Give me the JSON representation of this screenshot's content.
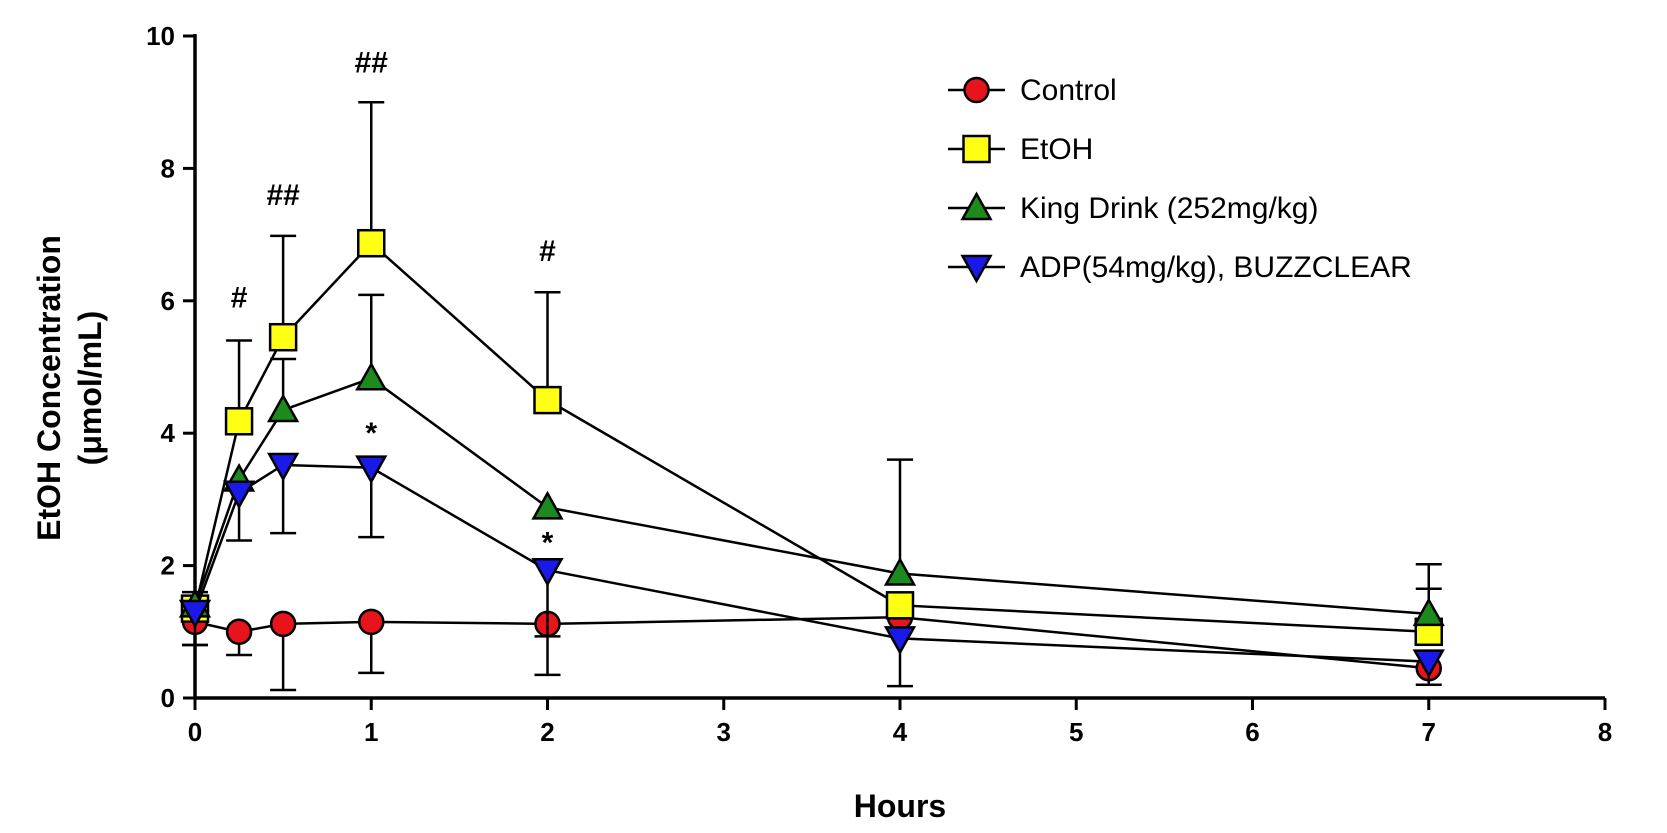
{
  "chart_data": {
    "type": "line",
    "xlabel": "Hours",
    "ylabel_line1": "EtOH Concentration",
    "ylabel_line2": "(μmol/mL)",
    "xlim": [
      0,
      8
    ],
    "ylim": [
      0,
      10
    ],
    "xticks": [
      "0",
      "1",
      "2",
      "3",
      "4",
      "5",
      "6",
      "7",
      "8"
    ],
    "yticks": [
      "0",
      "2",
      "4",
      "6",
      "8",
      "10"
    ],
    "grid": false,
    "legend_position": "top-right",
    "series": [
      {
        "name": "Control",
        "marker": "circle",
        "color": "#e8141b",
        "x": [
          0,
          0.25,
          0.5,
          1,
          2,
          4,
          7
        ],
        "y": [
          1.15,
          1.0,
          1.12,
          1.15,
          1.12,
          1.22,
          0.45
        ],
        "err_low": [
          0.35,
          0.35,
          1.0,
          0.77,
          0.77,
          0,
          0
        ],
        "err_high": [
          0,
          0,
          0,
          0,
          0,
          0,
          0
        ]
      },
      {
        "name": "EtOH",
        "marker": "square",
        "color": "#ffff14",
        "x": [
          0,
          0.25,
          0.5,
          1,
          2,
          4,
          7
        ],
        "y": [
          1.35,
          4.18,
          5.45,
          6.87,
          4.5,
          1.4,
          1.0
        ],
        "err_low": [
          0,
          0,
          0,
          0,
          0,
          0,
          0
        ],
        "err_high": [
          0.25,
          1.22,
          1.53,
          2.13,
          1.63,
          0,
          0.65
        ]
      },
      {
        "name": "King Drink (252mg/kg)",
        "marker": "triangle-up",
        "color": "#1c8a1c",
        "x": [
          0,
          0.25,
          0.5,
          1,
          2,
          4,
          7
        ],
        "y": [
          1.4,
          3.3,
          4.35,
          4.83,
          2.88,
          1.88,
          1.27
        ],
        "err_low": [
          0,
          0,
          0,
          0,
          0,
          0,
          0
        ],
        "err_high": [
          0,
          0,
          0.77,
          1.26,
          0,
          1.72,
          0.75
        ]
      },
      {
        "name": "ADP(54mg/kg), BUZZCLEAR",
        "marker": "triangle-down",
        "color": "#1a1ae8",
        "x": [
          0,
          0.25,
          0.5,
          1,
          2,
          4,
          7
        ],
        "y": [
          1.3,
          3.1,
          3.52,
          3.48,
          1.93,
          0.9,
          0.55
        ],
        "err_low": [
          0.5,
          0.72,
          1.03,
          1.05,
          1.0,
          0.72,
          0.35
        ],
        "err_high": [
          0,
          0,
          0,
          0,
          0,
          0,
          0
        ]
      }
    ],
    "annotations": [
      {
        "text": "#",
        "x": 0.25,
        "y": 5.9
      },
      {
        "text": "##",
        "x": 0.5,
        "y": 7.45
      },
      {
        "text": "##",
        "x": 1,
        "y": 9.45
      },
      {
        "text": "#",
        "x": 2,
        "y": 6.6
      },
      {
        "text": "*",
        "x": 1,
        "y": 3.85
      },
      {
        "text": "*",
        "x": 2,
        "y": 2.2
      }
    ]
  }
}
